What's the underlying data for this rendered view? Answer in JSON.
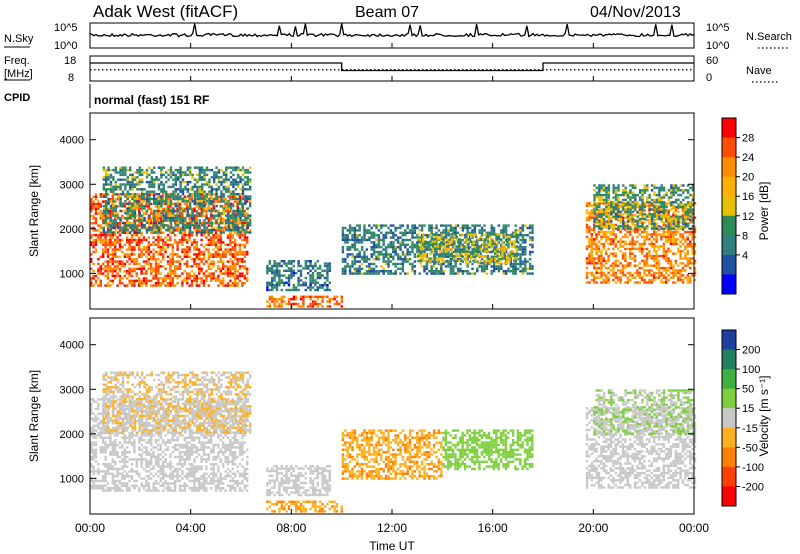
{
  "header": {
    "station": "Adak West (fitACF)",
    "beam": "Beam 07",
    "date": "04/Nov/2013"
  },
  "top_panels": {
    "nsky_label": "N.Sky",
    "nsky_ticks": [
      "10^5",
      "10^0"
    ],
    "nsearch_label": "N.Search",
    "nsearch_ticks": [
      "10^5",
      "10^0"
    ],
    "freq_label_line1": "Freq.",
    "freq_label_line2": "[MHz]",
    "freq_ticks": [
      "18",
      "8"
    ],
    "nave_label": "Nave",
    "nave_ticks": [
      "60",
      "0"
    ],
    "cpid_label": "CPID",
    "cpid_text": "normal (fast) 151 RF",
    "freq_steps": [
      {
        "from_h": 0,
        "to_h": 10,
        "level": 0.72
      },
      {
        "from_h": 10,
        "to_h": 18,
        "level": 0.42
      },
      {
        "from_h": 18,
        "to_h": 24,
        "level": 0.72
      }
    ]
  },
  "axes": {
    "y_label": "Slant Range [km]",
    "y_ticks": [
      "1000",
      "2000",
      "3000",
      "4000"
    ],
    "y_tick_values": [
      1000,
      2000,
      3000,
      4000
    ],
    "ylim": [
      200,
      4600
    ],
    "x_label": "Time UT",
    "x_ticks": [
      "00:00",
      "04:00",
      "08:00",
      "12:00",
      "16:00",
      "20:00",
      "00:00"
    ],
    "x_tick_hours": [
      0,
      4,
      8,
      12,
      16,
      20,
      24
    ],
    "xlim": [
      0,
      24
    ]
  },
  "colorbars": {
    "power": {
      "label": "Power [dB]",
      "ticks": [
        "28",
        "24",
        "20",
        "16",
        "12",
        "8",
        "4"
      ],
      "colors": [
        "#ff0000",
        "#ff4d00",
        "#ff8c00",
        "#ffb000",
        "#e8c000",
        "#2e8b57",
        "#2f7f7f",
        "#2050a0",
        "#0000ff"
      ]
    },
    "velocity": {
      "label": "Velocity [m s⁻¹]",
      "ticks": [
        "200",
        "100",
        "50",
        "15",
        "-15",
        "-50",
        "-100",
        "-200"
      ],
      "colors": [
        "#1f3fa0",
        "#1f7f5f",
        "#3faf3f",
        "#7fcf3f",
        "#c8c8c8",
        "#ffb020",
        "#ff8000",
        "#ff4000",
        "#ff0000"
      ]
    }
  },
  "chart_data": [
    {
      "type": "heatmap",
      "quantity": "power",
      "xlabel": "Time UT",
      "ylabel": "Slant Range [km]",
      "xlim": [
        0,
        24
      ],
      "ylim": [
        200,
        4600
      ],
      "zlim": [
        0,
        30
      ],
      "regions": [
        {
          "t0": 0.0,
          "t1": 6.2,
          "r0": 750,
          "r1": 2800,
          "v": 24
        },
        {
          "t0": 0.5,
          "t1": 6.4,
          "r0": 1900,
          "r1": 3400,
          "v": 10
        },
        {
          "t0": 7.0,
          "t1": 9.5,
          "r0": 600,
          "r1": 1300,
          "v": 8
        },
        {
          "t0": 7.0,
          "t1": 10.0,
          "r0": 250,
          "r1": 500,
          "v": 24
        },
        {
          "t0": 10.0,
          "t1": 17.6,
          "r0": 1000,
          "r1": 2100,
          "v": 9
        },
        {
          "t0": 13.0,
          "t1": 17.0,
          "r0": 1200,
          "r1": 1900,
          "v": 14
        },
        {
          "t0": 19.7,
          "t1": 24.0,
          "r0": 800,
          "r1": 2600,
          "v": 22
        },
        {
          "t0": 20.0,
          "t1": 24.0,
          "r0": 2000,
          "r1": 3000,
          "v": 11
        }
      ]
    },
    {
      "type": "heatmap",
      "quantity": "velocity",
      "xlabel": "Time UT",
      "ylabel": "Slant Range [km]",
      "xlim": [
        0,
        24
      ],
      "ylim": [
        200,
        4600
      ],
      "zlim": [
        -200,
        200
      ],
      "regions": [
        {
          "t0": 0.0,
          "t1": 6.2,
          "r0": 750,
          "r1": 2800,
          "v": 0
        },
        {
          "t0": 0.5,
          "t1": 6.4,
          "r0": 2000,
          "r1": 3400,
          "v": -20
        },
        {
          "t0": 7.0,
          "t1": 9.5,
          "r0": 600,
          "r1": 1300,
          "v": 0
        },
        {
          "t0": 7.0,
          "t1": 10.0,
          "r0": 250,
          "r1": 500,
          "v": -60
        },
        {
          "t0": 10.0,
          "t1": 14.0,
          "r0": 1000,
          "r1": 2100,
          "v": -60
        },
        {
          "t0": 14.0,
          "t1": 17.6,
          "r0": 1200,
          "r1": 2100,
          "v": 40
        },
        {
          "t0": 19.7,
          "t1": 24.0,
          "r0": 800,
          "r1": 2600,
          "v": 0
        },
        {
          "t0": 20.0,
          "t1": 24.0,
          "r0": 2000,
          "r1": 3000,
          "v": 20
        }
      ]
    }
  ]
}
